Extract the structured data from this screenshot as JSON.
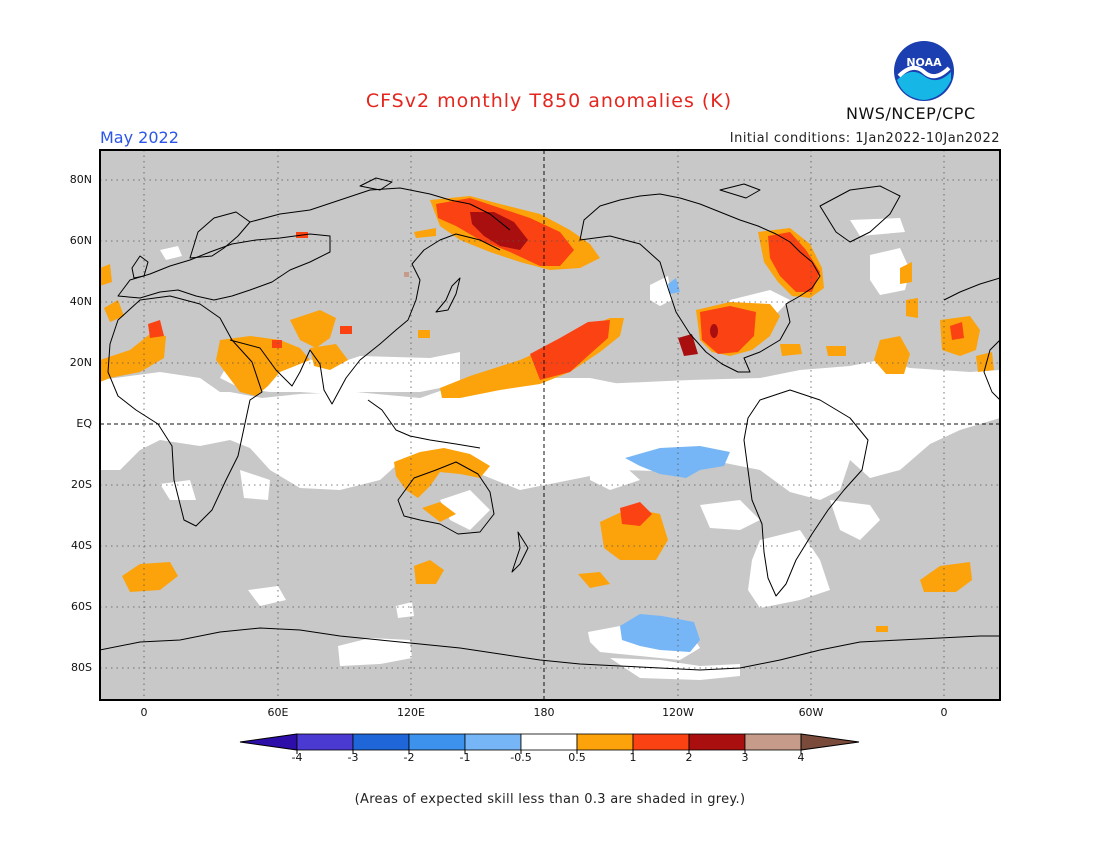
{
  "header": {
    "title": "CFSv2 monthly T850 anomalies (K)",
    "period": "May 2022",
    "initial_conditions": "Initial conditions: 1Jan2022-10Jan2022",
    "agency": "NWS/NCEP/CPC",
    "logo_text": "NOAA"
  },
  "map": {
    "lat_labels": [
      "80N",
      "60N",
      "40N",
      "20N",
      "EQ",
      "20S",
      "40S",
      "60S",
      "80S"
    ],
    "lon_labels": [
      "0",
      "60E",
      "120E",
      "180",
      "120W",
      "60W",
      "0"
    ],
    "background_color": "#c8c8c8",
    "coastline_color": "#000000"
  },
  "colorbar": {
    "labels": [
      "-4",
      "-3",
      "-2",
      "-1",
      "-0.5",
      "0.5",
      "1",
      "2",
      "3",
      "4"
    ],
    "colors": [
      "#2e0ea8",
      "#4b3ad2",
      "#1f67d8",
      "#3d92ee",
      "#76b6f6",
      "#ffffff",
      "#fca20a",
      "#fb4213",
      "#a90f0f",
      "#c79b89",
      "#7a4a3b"
    ]
  },
  "footnote": "(Areas of expected skill less than 0.3 are shaded in grey.)"
}
